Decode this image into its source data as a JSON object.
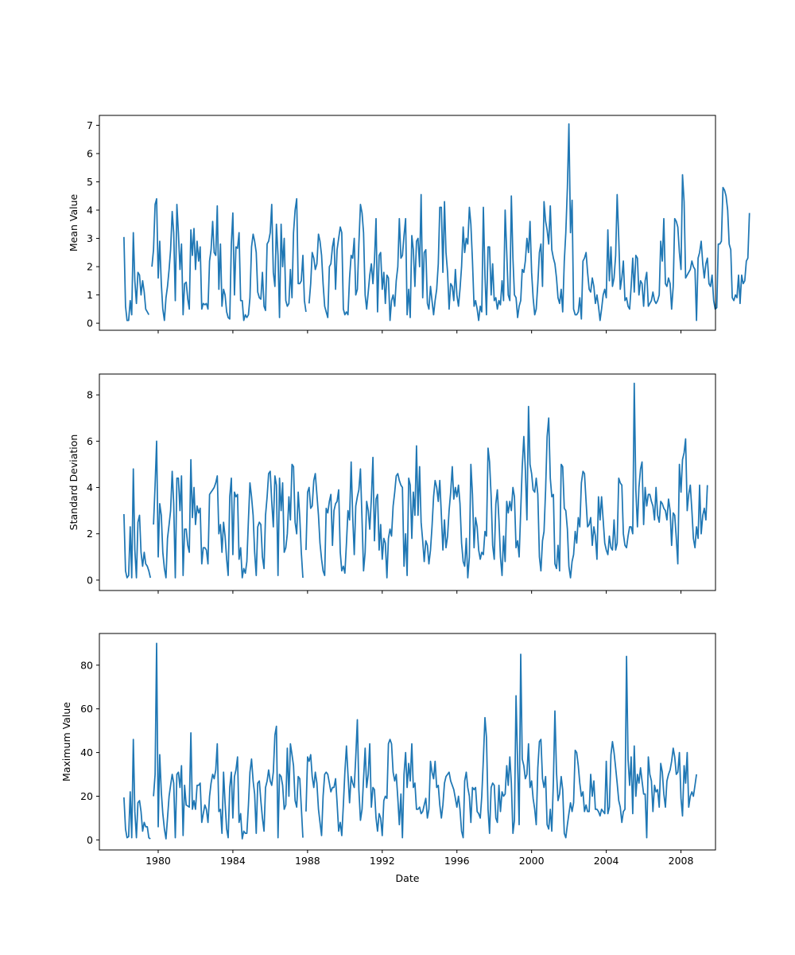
{
  "chart_data": {
    "type": "line",
    "xlabel": "Date",
    "x_ticks": [
      "1980",
      "1984",
      "1988",
      "1992",
      "1996",
      "2000",
      "2004",
      "2008"
    ],
    "x_tick_years": [
      1980,
      1984,
      1988,
      1992,
      1996,
      2000,
      2004,
      2008
    ],
    "xlim_years": [
      1976.85,
      2009.85
    ],
    "series_color": "#1f77b4",
    "start_date": "1978-03",
    "frequency": "monthly",
    "gap": "1979-09",
    "panels": [
      {
        "ylabel": "Mean Value",
        "ylim": [
          -0.25,
          7.35
        ],
        "y_ticks": [
          0,
          1,
          2,
          3,
          4,
          5,
          6,
          7
        ],
        "values": [
          3.05,
          0.6,
          0.1,
          0.1,
          0.8,
          0.3,
          3.2,
          1.5,
          0.7,
          1.8,
          1.7,
          1.0,
          1.5,
          1.1,
          0.5,
          0.4,
          0.3,
          null,
          2.0,
          2.6,
          4.2,
          4.4,
          1.6,
          2.9,
          1.4,
          0.5,
          0.1,
          0.9,
          1.3,
          1.9,
          2.6,
          3.95,
          3.2,
          0.8,
          4.2,
          3.2,
          1.9,
          2.8,
          0.3,
          1.4,
          1.45,
          0.85,
          0.5,
          3.3,
          2.4,
          3.35,
          1.9,
          2.9,
          2.2,
          2.7,
          0.5,
          0.7,
          0.65,
          0.7,
          0.5,
          2.2,
          2.6,
          3.6,
          2.5,
          2.4,
          4.15,
          1.2,
          2.8,
          0.6,
          1.2,
          1.0,
          0.4,
          0.2,
          0.15,
          2.8,
          3.9,
          1.0,
          2.7,
          2.65,
          3.2,
          0.8,
          0.8,
          0.1,
          0.3,
          0.2,
          0.3,
          0.9,
          2.7,
          3.15,
          2.9,
          2.5,
          1.1,
          0.9,
          0.85,
          1.8,
          0.6,
          0.45,
          2.8,
          2.9,
          3.2,
          4.2,
          1.8,
          1.3,
          3.5,
          2.4,
          0.2,
          3.5,
          2.0,
          3.0,
          0.8,
          0.6,
          0.7,
          1.9,
          0.9,
          3.2,
          4.0,
          4.4,
          1.4,
          1.4,
          1.5,
          2.4,
          0.8,
          0.4,
          null,
          0.7,
          1.4,
          2.5,
          2.3,
          1.9,
          2.1,
          3.15,
          2.9,
          2.4,
          1.4,
          0.6,
          0.4,
          0.2,
          2.0,
          2.1,
          2.7,
          3.0,
          1.2,
          2.6,
          3.0,
          3.4,
          3.2,
          0.5,
          0.3,
          0.4,
          0.3,
          1.6,
          2.4,
          2.3,
          3.0,
          1.0,
          1.2,
          2.8,
          4.2,
          3.9,
          3.2,
          1.0,
          0.5,
          1.1,
          1.7,
          2.1,
          1.4,
          2.2,
          3.7,
          0.4,
          2.4,
          2.5,
          1.2,
          1.8,
          0.7,
          1.7,
          1.6,
          0.1,
          0.8,
          1.0,
          0.6,
          1.5,
          2.0,
          3.7,
          2.3,
          2.4,
          3.1,
          3.7,
          0.3,
          1.2,
          0.2,
          3.1,
          2.6,
          1.3,
          2.9,
          3.0,
          2.0,
          4.55,
          0.9,
          2.5,
          2.6,
          0.7,
          0.5,
          1.3,
          0.8,
          0.3,
          0.8,
          1.2,
          2.1,
          4.1,
          4.1,
          1.8,
          4.3,
          2.5,
          1.8,
          0.5,
          1.4,
          1.3,
          0.8,
          1.9,
          1.0,
          0.6,
          1.2,
          2.0,
          3.4,
          2.5,
          3.0,
          2.8,
          4.1,
          3.5,
          2.2,
          0.6,
          0.8,
          0.5,
          0.1,
          0.6,
          0.4,
          4.1,
          1.7,
          0.3,
          2.7,
          2.7,
          1.0,
          2.1,
          0.8,
          0.9,
          0.5,
          0.8,
          0.65,
          1.5,
          0.8,
          4.0,
          2.5,
          1.0,
          0.8,
          4.5,
          2.3,
          1.0,
          0.9,
          0.2,
          0.6,
          0.8,
          1.9,
          1.8,
          2.2,
          3.0,
          2.5,
          3.6,
          1.8,
          0.9,
          0.3,
          0.5,
          1.4,
          2.5,
          2.8,
          1.3,
          4.3,
          3.6,
          3.3,
          2.8,
          4.15,
          2.6,
          2.3,
          2.1,
          1.6,
          0.9,
          0.7,
          1.2,
          0.4,
          2.2,
          3.2,
          4.8,
          7.05,
          3.2,
          4.35,
          0.5,
          0.3,
          0.3,
          0.4,
          0.9,
          0.15,
          2.2,
          2.3,
          2.5,
          1.8,
          1.2,
          1.1,
          1.6,
          1.3,
          0.7,
          1.0,
          0.6,
          0.1,
          0.5,
          1.0,
          1.2,
          0.9,
          3.3,
          1.5,
          2.7,
          1.3,
          1.6,
          2.4,
          4.55,
          3.0,
          1.2,
          1.6,
          2.2,
          0.8,
          0.9,
          0.6,
          0.5,
          1.3,
          2.3,
          1.1,
          2.4,
          2.3,
          1.0,
          1.5,
          1.4,
          0.6,
          1.5,
          1.8,
          0.6,
          0.7,
          0.8,
          1.1,
          0.8,
          0.7,
          0.8,
          1.0,
          2.9,
          2.2,
          3.7,
          1.4,
          1.3,
          1.6,
          1.4,
          0.5,
          1.3,
          3.7,
          3.6,
          3.4,
          2.5,
          1.9,
          5.25,
          4.3,
          1.6,
          1.7,
          1.8,
          1.9,
          2.2,
          2.0,
          1.9,
          0.1,
          2.3,
          2.5,
          2.9,
          2.1,
          1.6,
          2.1,
          2.3,
          1.4,
          1.3,
          1.7,
          0.8,
          0.5,
          0.55,
          2.8,
          2.8,
          2.9,
          4.8,
          4.7,
          4.5,
          4.0,
          2.8,
          2.6,
          0.9,
          0.8,
          1.0,
          0.9,
          1.7,
          0.7,
          1.7,
          1.4,
          1.5,
          2.2,
          2.3,
          3.9
        ]
      },
      {
        "ylabel": "Standard Deviation",
        "ylim": [
          -0.45,
          8.9
        ],
        "y_ticks": [
          0,
          2,
          4,
          6,
          8
        ],
        "values": [
          2.85,
          0.4,
          0.1,
          0.2,
          2.3,
          0.1,
          4.8,
          1.3,
          0.1,
          2.5,
          2.8,
          1.2,
          0.6,
          1.2,
          0.7,
          0.6,
          0.4,
          0.1,
          null,
          2.4,
          4.1,
          6.0,
          1.0,
          3.3,
          2.8,
          1.2,
          0.5,
          0.1,
          1.8,
          2.4,
          3.0,
          4.7,
          3.3,
          0.1,
          4.4,
          4.4,
          3.0,
          4.5,
          0.2,
          2.2,
          2.2,
          1.5,
          1.2,
          5.2,
          2.7,
          4.0,
          2.4,
          3.2,
          2.9,
          3.1,
          0.7,
          1.4,
          1.4,
          1.3,
          0.7,
          3.7,
          3.8,
          3.9,
          4.0,
          4.2,
          4.5,
          2.0,
          2.4,
          1.2,
          2.5,
          1.9,
          0.9,
          0.2,
          3.6,
          4.4,
          1.1,
          3.8,
          3.6,
          3.7,
          0.9,
          1.4,
          0.1,
          0.5,
          0.3,
          0.8,
          2.6,
          4.2,
          3.6,
          2.8,
          1.2,
          0.2,
          2.3,
          2.5,
          2.4,
          1.0,
          0.5,
          2.8,
          3.6,
          4.6,
          4.7,
          3.4,
          2.3,
          4.5,
          4.1,
          0.2,
          4.4,
          3.0,
          4.2,
          1.2,
          1.4,
          2.0,
          3.6,
          2.6,
          5.0,
          4.9,
          2.5,
          2.0,
          3.8,
          2.7,
          1.2,
          0.1,
          null,
          1.3,
          3.8,
          4.0,
          3.1,
          3.2,
          4.3,
          4.6,
          3.7,
          2.8,
          1.6,
          0.9,
          0.4,
          0.2,
          3.1,
          2.9,
          3.4,
          3.7,
          1.5,
          3.0,
          3.3,
          3.4,
          3.9,
          1.2,
          0.4,
          0.6,
          0.3,
          1.6,
          3.0,
          2.6,
          5.1,
          2.8,
          1.1,
          3.2,
          3.6,
          3.9,
          4.8,
          2.6,
          0.4,
          1.2,
          3.4,
          3.0,
          2.2,
          3.5,
          5.3,
          1.7,
          3.5,
          3.7,
          1.3,
          2.4,
          0.9,
          1.8,
          1.6,
          0.1,
          1.8,
          2.2,
          1.9,
          3.2,
          3.8,
          4.5,
          4.6,
          4.3,
          4.1,
          4.0,
          0.6,
          2.0,
          0.2,
          4.4,
          4.1,
          1.8,
          3.8,
          2.8,
          5.8,
          2.8,
          4.9,
          2.5,
          1.7,
          0.8,
          1.7,
          1.5,
          0.7,
          1.3,
          2.3,
          3.6,
          4.3,
          4.0,
          3.4,
          4.3,
          2.8,
          1.3,
          2.6,
          1.4,
          1.9,
          3.0,
          3.8,
          4.9,
          3.5,
          4.0,
          3.6,
          4.1,
          3.3,
          1.6,
          0.8,
          0.6,
          1.8,
          0.1,
          1.0,
          5.0,
          3.7,
          1.4,
          2.7,
          2.3,
          1.3,
          0.9,
          1.2,
          1.1,
          2.1,
          1.9,
          5.7,
          5.1,
          3.6,
          1.5,
          0.9,
          3.3,
          3.9,
          2.6,
          1.0,
          0.2,
          1.9,
          0.8,
          3.4,
          2.9,
          3.4,
          3.0,
          4.0,
          3.6,
          1.4,
          1.7,
          1.0,
          3.0,
          4.9,
          6.2,
          4.8,
          2.6,
          7.5,
          5.0,
          4.6,
          3.9,
          3.8,
          4.4,
          3.7,
          1.0,
          0.4,
          1.7,
          2.1,
          3.9,
          6.2,
          7.0,
          4.4,
          3.6,
          3.7,
          0.7,
          0.5,
          1.5,
          0.4,
          5.0,
          4.9,
          3.1,
          3.0,
          2.2,
          0.6,
          0.1,
          0.8,
          1.1,
          2.1,
          1.6,
          2.7,
          2.3,
          4.2,
          4.7,
          4.6,
          3.4,
          2.3,
          2.4,
          2.7,
          1.5,
          2.3,
          1.9,
          0.9,
          3.6,
          2.6,
          3.6,
          2.6,
          1.6,
          1.3,
          1.1,
          1.9,
          1.4,
          1.3,
          2.6,
          1.3,
          1.6,
          4.4,
          4.2,
          4.1,
          2.0,
          1.5,
          1.4,
          1.9,
          2.3,
          2.3,
          2.0,
          8.5,
          3.9,
          2.3,
          4.0,
          4.8,
          5.1,
          2.4,
          4.0,
          3.2,
          3.7,
          3.7,
          3.4,
          3.2,
          2.6,
          4.0,
          2.8,
          2.5,
          3.4,
          3.3,
          3.1,
          3.0,
          2.6,
          3.5,
          3.0,
          1.5,
          2.9,
          2.8,
          1.8,
          0.7,
          5.0,
          3.8,
          5.2,
          5.5,
          6.1,
          3.0,
          3.7,
          4.1,
          3.0,
          1.8,
          1.4,
          2.3,
          1.8,
          4.1,
          2.0,
          2.8,
          3.1,
          2.6,
          4.1
        ]
      },
      {
        "ylabel": "Maximum Value",
        "ylim": [
          -4.6,
          94.5
        ],
        "y_ticks": [
          0,
          20,
          40,
          60,
          80
        ],
        "values": [
          19.5,
          5.0,
          1.0,
          1.5,
          22.0,
          1.0,
          46.0,
          13.0,
          1.0,
          17.0,
          18.0,
          13.0,
          4.0,
          8.0,
          6.0,
          6.0,
          1.0,
          0.5,
          null,
          20.0,
          30.0,
          90.0,
          6.0,
          39.0,
          22.0,
          12.0,
          5.0,
          0.5,
          10.0,
          20.0,
          25.0,
          30.0,
          26.0,
          1.0,
          30.0,
          31.0,
          24.0,
          34.0,
          2.0,
          25.0,
          16.0,
          15.5,
          15.0,
          49.0,
          14.0,
          18.0,
          14.0,
          25.0,
          25.0,
          26.0,
          8.0,
          12.0,
          16.0,
          14.0,
          8.0,
          20.0,
          26.0,
          30.0,
          28.0,
          32.0,
          44.0,
          13.0,
          14.0,
          3.0,
          31.0,
          17.0,
          5.0,
          1.0,
          24.0,
          31.0,
          10.0,
          29.0,
          32.0,
          38.0,
          8.0,
          12.0,
          0.5,
          4.0,
          3.0,
          3.0,
          16.0,
          31.0,
          37.0,
          27.0,
          21.0,
          3.0,
          26.0,
          27.0,
          18.0,
          10.0,
          4.0,
          24.0,
          27.0,
          32.0,
          27.0,
          25.0,
          31.0,
          48.0,
          52.0,
          1.0,
          30.0,
          29.0,
          25.0,
          14.0,
          16.0,
          42.0,
          20.0,
          44.0,
          39.0,
          34.0,
          18.0,
          15.0,
          29.0,
          28.0,
          15.0,
          1.0,
          null,
          13.0,
          38.0,
          36.0,
          39.0,
          29.0,
          24.0,
          31.0,
          26.0,
          14.0,
          8.0,
          2.0,
          20.0,
          30.0,
          31.0,
          30.0,
          26.0,
          22.0,
          24.0,
          24.0,
          28.0,
          17.0,
          4.0,
          8.0,
          2.0,
          16.0,
          31.0,
          43.0,
          30.0,
          17.0,
          29.0,
          26.0,
          24.0,
          38.0,
          55.0,
          23.0,
          9.0,
          14.0,
          28.0,
          42.0,
          24.0,
          30.0,
          44.0,
          15.0,
          24.0,
          23.0,
          10.0,
          4.0,
          12.0,
          10.0,
          2.0,
          18.0,
          20.0,
          19.0,
          44.0,
          46.0,
          44.0,
          31.0,
          27.0,
          30.0,
          19.0,
          7.0,
          21.0,
          1.0,
          30.0,
          40.0,
          24.0,
          35.0,
          27.0,
          44.0,
          24.0,
          26.0,
          14.0,
          14.0,
          15.0,
          12.0,
          13.0,
          16.0,
          19.0,
          10.0,
          14.0,
          36.0,
          31.0,
          28.0,
          36.0,
          24.0,
          25.0,
          16.0,
          10.0,
          16.0,
          26.0,
          29.0,
          30.0,
          31.0,
          27.0,
          25.0,
          23.0,
          19.0,
          15.0,
          20.0,
          14.0,
          4.0,
          1.0,
          27.0,
          31.0,
          24.0,
          20.0,
          8.0,
          24.0,
          23.0,
          24.0,
          13.0,
          12.0,
          10.0,
          20.0,
          37.0,
          56.0,
          47.0,
          14.0,
          3.0,
          24.0,
          26.0,
          25.0,
          10.0,
          8.0,
          25.0,
          13.0,
          22.0,
          20.0,
          21.0,
          34.0,
          25.0,
          38.0,
          26.0,
          3.0,
          9.0,
          66.0,
          35.0,
          7.0,
          85.0,
          37.0,
          34.0,
          28.0,
          30.0,
          44.0,
          24.0,
          27.0,
          19.0,
          14.0,
          7.0,
          33.0,
          45.0,
          46.0,
          28.0,
          24.0,
          29.0,
          7.0,
          5.0,
          14.0,
          4.0,
          27.0,
          59.0,
          31.0,
          18.0,
          21.0,
          29.0,
          23.0,
          3.0,
          1.0,
          7.0,
          12.0,
          17.0,
          13.0,
          17.0,
          41.0,
          40.0,
          34.0,
          26.0,
          20.0,
          22.0,
          13.0,
          16.0,
          13.0,
          13.0,
          30.0,
          20.0,
          27.0,
          14.0,
          14.0,
          13.0,
          11.0,
          14.0,
          13.0,
          12.0,
          36.0,
          12.0,
          15.0,
          39.0,
          45.0,
          40.0,
          33.0,
          26.0,
          18.0,
          15.0,
          8.0,
          13.0,
          14.0,
          84.0,
          37.0,
          25.0,
          38.0,
          12.0,
          43.0,
          20.0,
          30.0,
          26.0,
          33.0,
          27.0,
          21.0,
          21.0,
          1.0,
          38.0,
          30.0,
          27.0,
          13.0,
          25.0,
          22.0,
          23.0,
          15.0,
          35.0,
          31.0,
          21.0,
          15.0,
          27.0,
          30.0,
          32.0,
          36.0,
          42.0,
          38.0,
          30.0,
          31.0,
          40.0,
          19.0,
          11.0,
          34.0,
          26.0,
          40.0,
          15.0,
          20.0,
          22.0,
          20.0,
          25.0,
          30.0
        ]
      }
    ]
  }
}
